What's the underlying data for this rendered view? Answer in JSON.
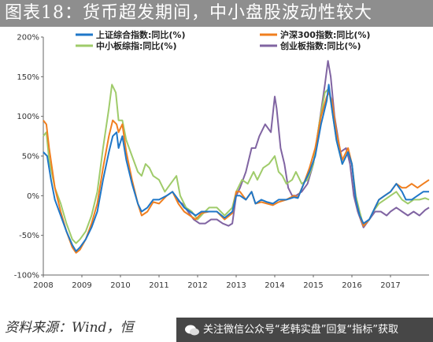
{
  "title": "图表18：货币超发期间，中小盘股波动性较大",
  "source": "资料来源：Wind，恒",
  "watermark": "关注微信公众号“老韩实盘”回复“指标”获取",
  "colors": {
    "title_bg": "#8e8e8e",
    "series": [
      "#1f77c8",
      "#f07f1f",
      "#9fcb6a",
      "#8064a2"
    ]
  },
  "chart_data": {
    "type": "line",
    "xlabel": "",
    "ylabel": "",
    "yticks": [
      "200%",
      "150%",
      "100%",
      "50%",
      "0%",
      "-50%",
      "-100%"
    ],
    "ylim": [
      -100,
      200
    ],
    "xticks": [
      "2008",
      "2009",
      "2010",
      "2011",
      "2012",
      "2013",
      "2014",
      "2015",
      "2016",
      "2017"
    ],
    "xlim": [
      2008.0,
      2018.0
    ],
    "grid": false,
    "legend_position": "top",
    "series": [
      {
        "name": "上证综合指数:同比(%)",
        "points": [
          [
            2008.0,
            55
          ],
          [
            2008.1,
            50
          ],
          [
            2008.2,
            20
          ],
          [
            2008.3,
            -5
          ],
          [
            2008.45,
            -25
          ],
          [
            2008.6,
            -45
          ],
          [
            2008.75,
            -62
          ],
          [
            2008.85,
            -70
          ],
          [
            2008.95,
            -65
          ],
          [
            2009.1,
            -55
          ],
          [
            2009.25,
            -40
          ],
          [
            2009.4,
            -20
          ],
          [
            2009.55,
            20
          ],
          [
            2009.7,
            55
          ],
          [
            2009.8,
            75
          ],
          [
            2009.9,
            80
          ],
          [
            2009.95,
            60
          ],
          [
            2010.05,
            75
          ],
          [
            2010.15,
            45
          ],
          [
            2010.3,
            15
          ],
          [
            2010.45,
            -10
          ],
          [
            2010.55,
            -20
          ],
          [
            2010.7,
            -15
          ],
          [
            2010.85,
            -5
          ],
          [
            2011.0,
            -5
          ],
          [
            2011.2,
            0
          ],
          [
            2011.35,
            5
          ],
          [
            2011.5,
            -5
          ],
          [
            2011.65,
            -15
          ],
          [
            2011.8,
            -20
          ],
          [
            2011.95,
            -25
          ],
          [
            2012.1,
            -20
          ],
          [
            2012.3,
            -20
          ],
          [
            2012.5,
            -20
          ],
          [
            2012.7,
            -28
          ],
          [
            2012.9,
            -20
          ],
          [
            2013.0,
            0
          ],
          [
            2013.1,
            0
          ],
          [
            2013.25,
            -5
          ],
          [
            2013.4,
            5
          ],
          [
            2013.5,
            -10
          ],
          [
            2013.65,
            -5
          ],
          [
            2013.8,
            -8
          ],
          [
            2013.95,
            -10
          ],
          [
            2014.1,
            -5
          ],
          [
            2014.3,
            -5
          ],
          [
            2014.5,
            -2
          ],
          [
            2014.6,
            -3
          ],
          [
            2014.75,
            15
          ],
          [
            2014.9,
            30
          ],
          [
            2015.05,
            50
          ],
          [
            2015.2,
            90
          ],
          [
            2015.35,
            120
          ],
          [
            2015.4,
            140
          ],
          [
            2015.48,
            110
          ],
          [
            2015.6,
            70
          ],
          [
            2015.75,
            40
          ],
          [
            2015.9,
            55
          ],
          [
            2016.0,
            40
          ],
          [
            2016.1,
            -5
          ],
          [
            2016.2,
            -25
          ],
          [
            2016.3,
            -35
          ],
          [
            2016.45,
            -30
          ],
          [
            2016.55,
            -20
          ],
          [
            2016.7,
            -5
          ],
          [
            2016.85,
            0
          ],
          [
            2017.0,
            5
          ],
          [
            2017.15,
            15
          ],
          [
            2017.3,
            5
          ],
          [
            2017.4,
            -5
          ],
          [
            2017.55,
            -5
          ],
          [
            2017.7,
            0
          ],
          [
            2017.85,
            5
          ],
          [
            2018.0,
            5
          ]
        ]
      },
      {
        "name": "沪深300指数:同比(%)",
        "points": [
          [
            2008.0,
            95
          ],
          [
            2008.08,
            90
          ],
          [
            2008.15,
            60
          ],
          [
            2008.3,
            10
          ],
          [
            2008.45,
            -20
          ],
          [
            2008.6,
            -45
          ],
          [
            2008.75,
            -65
          ],
          [
            2008.85,
            -72
          ],
          [
            2008.95,
            -68
          ],
          [
            2009.1,
            -55
          ],
          [
            2009.25,
            -35
          ],
          [
            2009.4,
            -10
          ],
          [
            2009.55,
            35
          ],
          [
            2009.7,
            75
          ],
          [
            2009.8,
            95
          ],
          [
            2009.9,
            90
          ],
          [
            2009.95,
            80
          ],
          [
            2010.05,
            90
          ],
          [
            2010.15,
            55
          ],
          [
            2010.3,
            20
          ],
          [
            2010.45,
            -10
          ],
          [
            2010.55,
            -25
          ],
          [
            2010.7,
            -20
          ],
          [
            2010.85,
            -8
          ],
          [
            2011.0,
            -10
          ],
          [
            2011.2,
            0
          ],
          [
            2011.35,
            5
          ],
          [
            2011.5,
            -10
          ],
          [
            2011.65,
            -20
          ],
          [
            2011.8,
            -25
          ],
          [
            2011.95,
            -30
          ],
          [
            2012.1,
            -22
          ],
          [
            2012.3,
            -20
          ],
          [
            2012.5,
            -20
          ],
          [
            2012.7,
            -30
          ],
          [
            2012.9,
            -22
          ],
          [
            2013.0,
            5
          ],
          [
            2013.1,
            5
          ],
          [
            2013.25,
            -5
          ],
          [
            2013.4,
            5
          ],
          [
            2013.5,
            -10
          ],
          [
            2013.65,
            -8
          ],
          [
            2013.8,
            -10
          ],
          [
            2013.95,
            -12
          ],
          [
            2014.1,
            -8
          ],
          [
            2014.3,
            -5
          ],
          [
            2014.5,
            0
          ],
          [
            2014.6,
            -2
          ],
          [
            2014.75,
            15
          ],
          [
            2014.9,
            35
          ],
          [
            2015.05,
            60
          ],
          [
            2015.2,
            100
          ],
          [
            2015.35,
            125
          ],
          [
            2015.4,
            130
          ],
          [
            2015.48,
            120
          ],
          [
            2015.6,
            80
          ],
          [
            2015.75,
            45
          ],
          [
            2015.9,
            60
          ],
          [
            2016.0,
            40
          ],
          [
            2016.1,
            -5
          ],
          [
            2016.2,
            -25
          ],
          [
            2016.3,
            -38
          ],
          [
            2016.45,
            -30
          ],
          [
            2016.55,
            -20
          ],
          [
            2016.7,
            -5
          ],
          [
            2016.85,
            0
          ],
          [
            2017.0,
            5
          ],
          [
            2017.15,
            15
          ],
          [
            2017.3,
            10
          ],
          [
            2017.4,
            10
          ],
          [
            2017.55,
            15
          ],
          [
            2017.7,
            10
          ],
          [
            2017.85,
            15
          ],
          [
            2018.0,
            20
          ]
        ]
      },
      {
        "name": "中小板综指:同比(%)",
        "points": [
          [
            2008.0,
            75
          ],
          [
            2008.08,
            80
          ],
          [
            2008.15,
            45
          ],
          [
            2008.3,
            10
          ],
          [
            2008.45,
            -10
          ],
          [
            2008.6,
            -35
          ],
          [
            2008.75,
            -55
          ],
          [
            2008.85,
            -60
          ],
          [
            2008.95,
            -55
          ],
          [
            2009.1,
            -45
          ],
          [
            2009.25,
            -25
          ],
          [
            2009.4,
            5
          ],
          [
            2009.55,
            60
          ],
          [
            2009.7,
            110
          ],
          [
            2009.78,
            140
          ],
          [
            2009.88,
            130
          ],
          [
            2009.95,
            95
          ],
          [
            2010.05,
            95
          ],
          [
            2010.15,
            70
          ],
          [
            2010.3,
            50
          ],
          [
            2010.45,
            30
          ],
          [
            2010.55,
            25
          ],
          [
            2010.65,
            40
          ],
          [
            2010.75,
            35
          ],
          [
            2010.85,
            25
          ],
          [
            2011.0,
            20
          ],
          [
            2011.15,
            5
          ],
          [
            2011.3,
            15
          ],
          [
            2011.45,
            25
          ],
          [
            2011.55,
            0
          ],
          [
            2011.7,
            -15
          ],
          [
            2011.85,
            -20
          ],
          [
            2012.0,
            -30
          ],
          [
            2012.15,
            -22
          ],
          [
            2012.3,
            -15
          ],
          [
            2012.5,
            -15
          ],
          [
            2012.7,
            -25
          ],
          [
            2012.9,
            -15
          ],
          [
            2013.0,
            5
          ],
          [
            2013.15,
            20
          ],
          [
            2013.3,
            15
          ],
          [
            2013.45,
            30
          ],
          [
            2013.55,
            20
          ],
          [
            2013.7,
            35
          ],
          [
            2013.85,
            40
          ],
          [
            2014.0,
            50
          ],
          [
            2014.1,
            30
          ],
          [
            2014.2,
            25
          ],
          [
            2014.3,
            15
          ],
          [
            2014.45,
            20
          ],
          [
            2014.55,
            30
          ],
          [
            2014.7,
            15
          ],
          [
            2014.85,
            20
          ],
          [
            2015.0,
            40
          ],
          [
            2015.15,
            90
          ],
          [
            2015.3,
            130
          ],
          [
            2015.4,
            135
          ],
          [
            2015.48,
            110
          ],
          [
            2015.6,
            70
          ],
          [
            2015.75,
            40
          ],
          [
            2015.9,
            55
          ],
          [
            2016.0,
            40
          ],
          [
            2016.1,
            0
          ],
          [
            2016.2,
            -20
          ],
          [
            2016.3,
            -38
          ],
          [
            2016.45,
            -30
          ],
          [
            2016.55,
            -20
          ],
          [
            2016.7,
            -10
          ],
          [
            2016.85,
            -5
          ],
          [
            2017.0,
            0
          ],
          [
            2017.15,
            5
          ],
          [
            2017.3,
            -5
          ],
          [
            2017.45,
            -10
          ],
          [
            2017.6,
            -5
          ],
          [
            2017.75,
            -5
          ],
          [
            2017.9,
            -3
          ],
          [
            2018.0,
            -5
          ]
        ]
      },
      {
        "name": "创业板指数:同比(%)",
        "points": [
          [
            2011.45,
            -5
          ],
          [
            2011.6,
            -10
          ],
          [
            2011.75,
            -20
          ],
          [
            2011.9,
            -30
          ],
          [
            2012.05,
            -35
          ],
          [
            2012.2,
            -35
          ],
          [
            2012.35,
            -30
          ],
          [
            2012.5,
            -30
          ],
          [
            2012.65,
            -35
          ],
          [
            2012.8,
            -38
          ],
          [
            2012.9,
            -35
          ],
          [
            2013.0,
            0
          ],
          [
            2013.1,
            10
          ],
          [
            2013.25,
            30
          ],
          [
            2013.4,
            60
          ],
          [
            2013.5,
            60
          ],
          [
            2013.6,
            75
          ],
          [
            2013.75,
            90
          ],
          [
            2013.9,
            80
          ],
          [
            2014.0,
            125
          ],
          [
            2014.05,
            110
          ],
          [
            2014.15,
            60
          ],
          [
            2014.25,
            40
          ],
          [
            2014.35,
            10
          ],
          [
            2014.45,
            0
          ],
          [
            2014.55,
            0
          ],
          [
            2014.7,
            5
          ],
          [
            2014.85,
            15
          ],
          [
            2015.0,
            40
          ],
          [
            2015.15,
            90
          ],
          [
            2015.3,
            140
          ],
          [
            2015.38,
            170
          ],
          [
            2015.45,
            150
          ],
          [
            2015.55,
            100
          ],
          [
            2015.7,
            55
          ],
          [
            2015.85,
            60
          ],
          [
            2015.95,
            40
          ],
          [
            2016.05,
            0
          ],
          [
            2016.15,
            -20
          ],
          [
            2016.3,
            -40
          ],
          [
            2016.45,
            -30
          ],
          [
            2016.6,
            -20
          ],
          [
            2016.75,
            -20
          ],
          [
            2016.9,
            -25
          ],
          [
            2017.0,
            -20
          ],
          [
            2017.15,
            -15
          ],
          [
            2017.3,
            -20
          ],
          [
            2017.45,
            -25
          ],
          [
            2017.6,
            -20
          ],
          [
            2017.75,
            -25
          ],
          [
            2017.9,
            -18
          ],
          [
            2018.0,
            -15
          ]
        ]
      }
    ]
  }
}
